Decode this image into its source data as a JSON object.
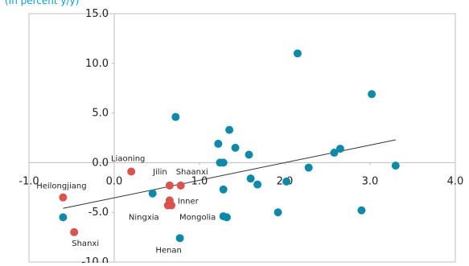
{
  "chart_data": {
    "type": "scatter",
    "subtitle": "(In percent y/y)",
    "xlim": [
      -1.0,
      4.0
    ],
    "ylim": [
      -10.0,
      15.0
    ],
    "x_ticks": [
      -1.0,
      0.0,
      1.0,
      2.0,
      3.0,
      4.0
    ],
    "x_tick_labels": [
      "-1.0",
      "0.0",
      "1.0",
      "2.0",
      "3.0",
      "4.0"
    ],
    "y_ticks": [
      -10.0,
      -5.0,
      0.0,
      5.0,
      10.0,
      15.0
    ],
    "y_tick_labels": [
      "-10.0",
      "-5.0",
      "0.0",
      "5.0",
      "10.0",
      "15.0"
    ],
    "grid": false,
    "colors": {
      "other": "#0e8aa8",
      "highlight": "#d9534f",
      "trendline": "#333333",
      "axis": "#bfbfbf"
    },
    "trendline": {
      "x": [
        -0.6,
        3.3
      ],
      "y": [
        -4.6,
        2.3
      ]
    },
    "series": [
      {
        "values": [
          {
            "x": 0.72,
            "y": 4.6
          },
          {
            "x": 2.15,
            "y": 11.0
          },
          {
            "x": 3.02,
            "y": 6.9
          },
          {
            "x": 1.35,
            "y": 3.3
          },
          {
            "x": 1.22,
            "y": 1.9
          },
          {
            "x": 1.42,
            "y": 1.5
          },
          {
            "x": 1.58,
            "y": 0.8
          },
          {
            "x": 1.24,
            "y": 0.0
          },
          {
            "x": 1.28,
            "y": 0.0
          },
          {
            "x": 2.58,
            "y": 1.0
          },
          {
            "x": 2.65,
            "y": 1.4
          },
          {
            "x": 1.6,
            "y": -1.6
          },
          {
            "x": 1.68,
            "y": -2.2
          },
          {
            "x": 2.28,
            "y": -0.5
          },
          {
            "x": 2.02,
            "y": -1.9
          },
          {
            "x": 3.3,
            "y": -0.3
          },
          {
            "x": 1.28,
            "y": -2.7
          },
          {
            "x": 0.45,
            "y": -3.1
          },
          {
            "x": 1.28,
            "y": -5.4
          },
          {
            "x": 1.32,
            "y": -5.5
          },
          {
            "x": 1.92,
            "y": -5.0
          },
          {
            "x": 2.9,
            "y": -4.8
          },
          {
            "x": -0.6,
            "y": -5.5
          },
          {
            "x": 0.77,
            "y": -7.6
          }
        ]
      },
      {
        "values": [
          {
            "x": -0.6,
            "y": -3.5,
            "label": "Heilongjiang"
          },
          {
            "x": -0.47,
            "y": -7.0,
            "label": "Shanxi"
          },
          {
            "x": 0.2,
            "y": -0.9,
            "label": "Liaoning"
          },
          {
            "x": 0.65,
            "y": -2.3,
            "label": "Jilin"
          },
          {
            "x": 0.78,
            "y": -2.3,
            "label": "Shaanxi"
          },
          {
            "x": 0.65,
            "y": -3.8,
            "label": "Inner"
          },
          {
            "x": 0.67,
            "y": -4.3,
            "label": "Mongolia"
          },
          {
            "x": 0.63,
            "y": -4.3,
            "label": "Ningxia"
          },
          {
            "x": 0.77,
            "y": -7.6,
            "label": "Henan"
          }
        ]
      }
    ]
  }
}
